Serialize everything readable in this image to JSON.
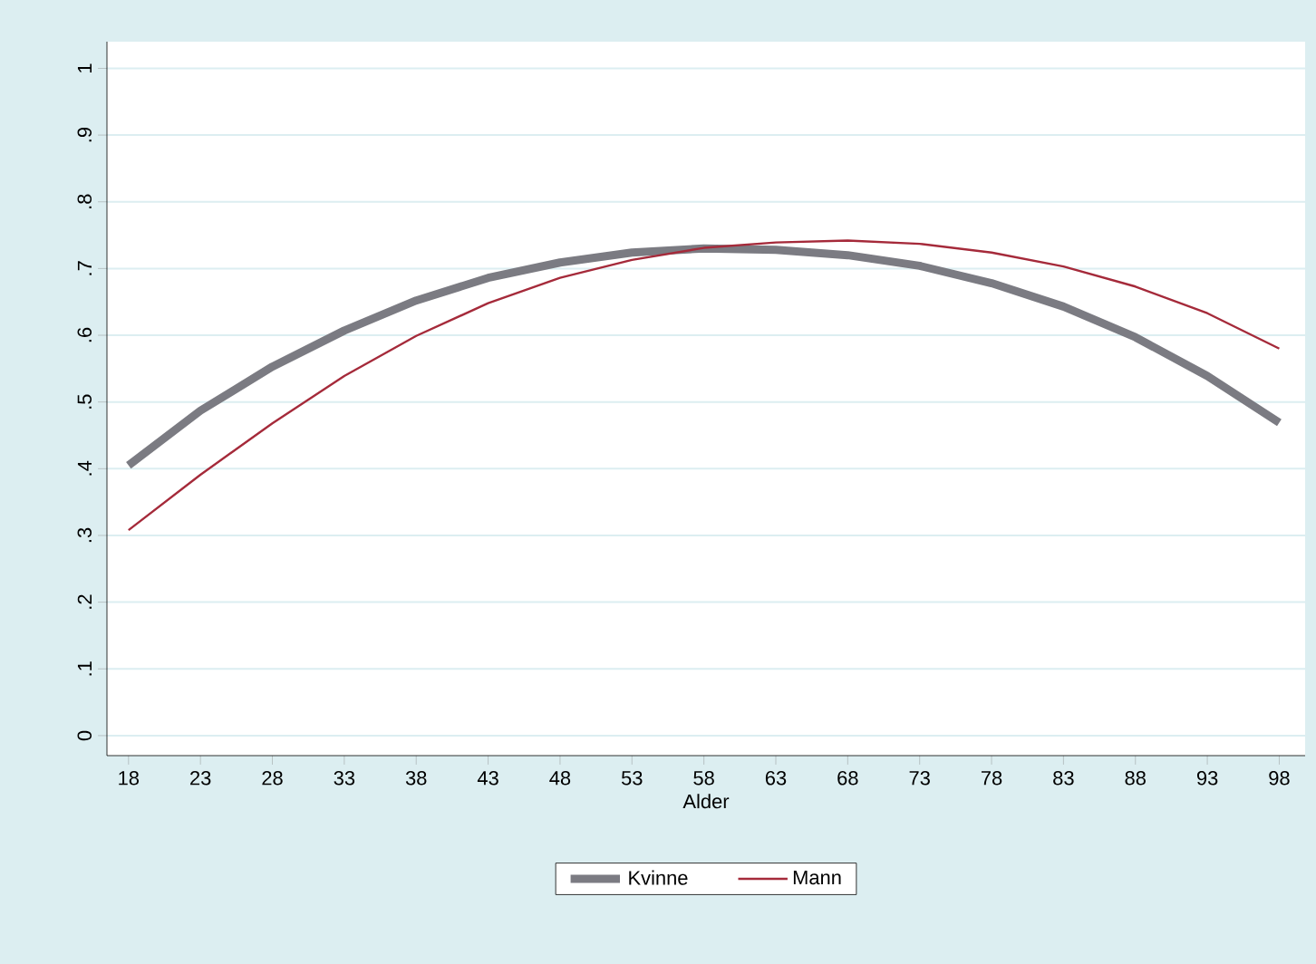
{
  "chart_data": {
    "type": "line",
    "xlabel": "Alder",
    "x": [
      18,
      23,
      28,
      33,
      38,
      43,
      48,
      53,
      58,
      63,
      68,
      73,
      78,
      83,
      88,
      93,
      98
    ],
    "series": [
      {
        "name": "Kvinne",
        "color": "#7b7b82",
        "values": [
          0.405,
          0.487,
          0.553,
          0.607,
          0.652,
          0.686,
          0.709,
          0.724,
          0.73,
          0.728,
          0.72,
          0.704,
          0.678,
          0.643,
          0.597,
          0.539,
          0.469
        ]
      },
      {
        "name": "Mann",
        "color": "#a52a3a",
        "values": [
          0.308,
          0.391,
          0.468,
          0.539,
          0.599,
          0.648,
          0.686,
          0.713,
          0.731,
          0.739,
          0.742,
          0.737,
          0.724,
          0.703,
          0.673,
          0.633,
          0.58
        ]
      }
    ],
    "xlim": [
      16.5,
      99.8
    ],
    "ylim": [
      -0.03,
      1.04
    ],
    "xticks": [
      18,
      23,
      28,
      33,
      38,
      43,
      48,
      53,
      58,
      63,
      68,
      73,
      78,
      83,
      88,
      93,
      98
    ],
    "yticks": [
      {
        "value": 0,
        "label": "0"
      },
      {
        "value": 0.1,
        "label": ".1"
      },
      {
        "value": 0.2,
        "label": ".2"
      },
      {
        "value": 0.3,
        "label": ".3"
      },
      {
        "value": 0.4,
        "label": ".4"
      },
      {
        "value": 0.5,
        "label": ".5"
      },
      {
        "value": 0.6,
        "label": ".6"
      },
      {
        "value": 0.7,
        "label": ".7"
      },
      {
        "value": 0.8,
        "label": ".8"
      },
      {
        "value": 0.9,
        "label": ".9"
      },
      {
        "value": 1,
        "label": "1"
      }
    ],
    "grid": "y",
    "legend": "bottom",
    "marker": "none",
    "line_style": "solid"
  }
}
